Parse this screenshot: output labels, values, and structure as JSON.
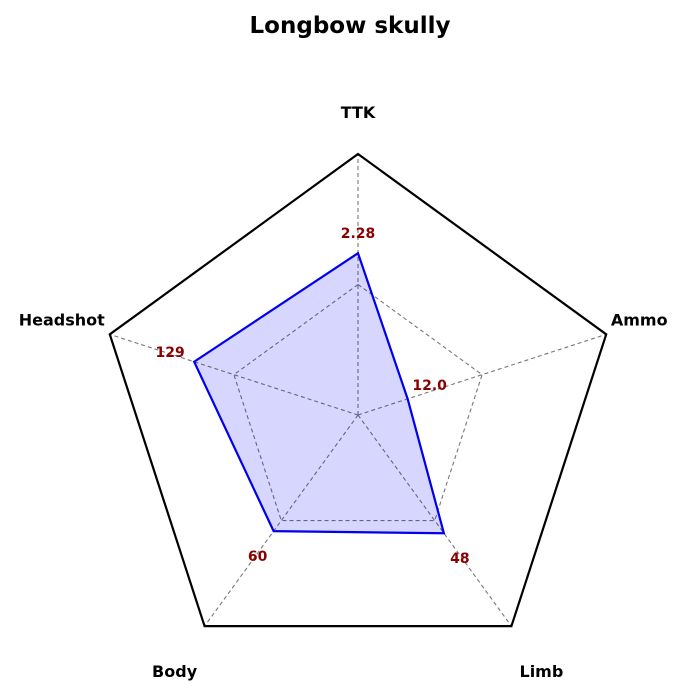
{
  "chart_data": {
    "type": "radar",
    "title": "Longbow skully",
    "axes": [
      {
        "name": "TTK",
        "display": "2.28",
        "norm": 0.62
      },
      {
        "name": "Ammo",
        "display": "12.0",
        "norm": 0.2
      },
      {
        "name": "Limb",
        "display": "48",
        "norm": 0.56
      },
      {
        "name": "Body",
        "display": "60",
        "norm": 0.55
      },
      {
        "name": "Headshot",
        "display": "129",
        "norm": 0.66
      }
    ],
    "rings": [
      0.5,
      1.0
    ],
    "grid": true,
    "colors": {
      "line": "#0000ee",
      "fill": "#0000ff",
      "fill_opacity": 0.16,
      "outer": "#000000",
      "grid": "#777777",
      "value_text": "#8b0000"
    }
  }
}
